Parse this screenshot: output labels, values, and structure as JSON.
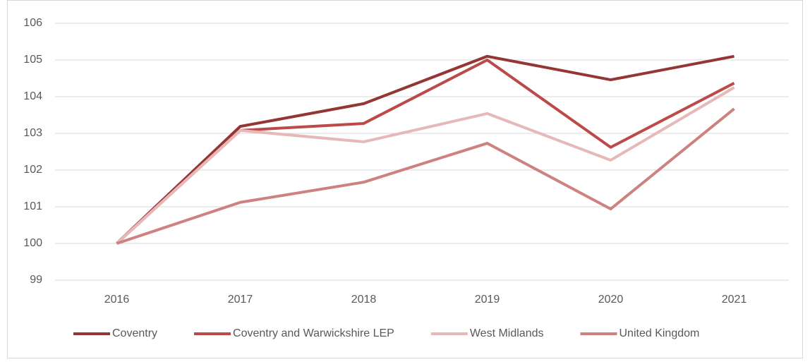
{
  "chart_data": {
    "type": "line",
    "categories": [
      "2016",
      "2017",
      "2018",
      "2019",
      "2020",
      "2021"
    ],
    "series": [
      {
        "name": "Coventry",
        "color": "#943634",
        "values": [
          100,
          103.19,
          103.81,
          105.1,
          104.46,
          105.1
        ]
      },
      {
        "name": "Coventry and Warwickshire LEP",
        "color": "#bb4a48",
        "values": [
          100,
          103.08,
          103.27,
          105.0,
          102.62,
          104.37
        ]
      },
      {
        "name": "West Midlands",
        "color": "#e6b9b8",
        "values": [
          100,
          103.08,
          102.77,
          103.54,
          102.27,
          104.25
        ]
      },
      {
        "name": "United Kingdom",
        "color": "#cd8280",
        "values": [
          100,
          101.12,
          101.67,
          102.73,
          100.94,
          103.67
        ]
      }
    ],
    "ylim": [
      99,
      106
    ],
    "yticks": [
      99,
      100,
      101,
      102,
      103,
      104,
      105,
      106
    ],
    "grid": true,
    "legend": "bottom"
  }
}
